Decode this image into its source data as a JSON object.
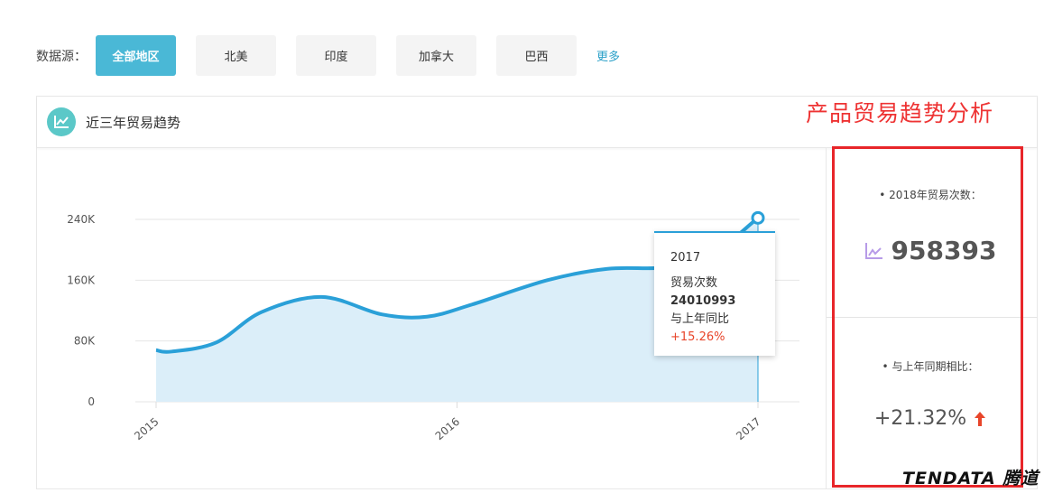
{
  "filter": {
    "label": "数据源：",
    "options": [
      "全部地区",
      "北美",
      "印度",
      "加拿大",
      "巴西"
    ],
    "active": 0,
    "more": "更多"
  },
  "card": {
    "title": "近三年贸易趋势",
    "icon": "line-chart-icon"
  },
  "annotation": "产品贸易趋势分析",
  "stats": {
    "trade_label": "2018年贸易次数：",
    "trade_value": "958393",
    "trade_icon": "line-chart-icon",
    "yoy_label": "与上年同期相比：",
    "yoy_value": "+21.32%",
    "yoy_icon": "arrow-up-icon"
  },
  "tooltip": {
    "year": "2017",
    "metric": "贸易次数",
    "value": "24010993",
    "compare_label": "与上年同比",
    "compare_value": "+15.26%"
  },
  "logo": "TENDATA 腾道",
  "colors": {
    "accent": "#4ab8d6",
    "line": "#2aa0d8",
    "fill": "#dbeef9",
    "up": "#e8452a",
    "annotation": "#e8262a"
  },
  "chart_data": {
    "type": "area",
    "x_ticks": [
      "2015",
      "2016",
      "2017"
    ],
    "y_ticks": [
      "0",
      "80K",
      "160K",
      "240K"
    ],
    "ylim": [
      0,
      240000
    ],
    "grid": true,
    "points": [
      [
        2015.0,
        68000
      ],
      [
        2015.05,
        66000
      ],
      [
        2015.2,
        78000
      ],
      [
        2015.35,
        118000
      ],
      [
        2015.55,
        138000
      ],
      [
        2015.75,
        115000
      ],
      [
        2015.9,
        112000
      ],
      [
        2016.05,
        128000
      ],
      [
        2016.3,
        160000
      ],
      [
        2016.5,
        175000
      ],
      [
        2016.7,
        177000
      ],
      [
        2016.85,
        195000
      ],
      [
        2017.0,
        242000
      ]
    ]
  }
}
